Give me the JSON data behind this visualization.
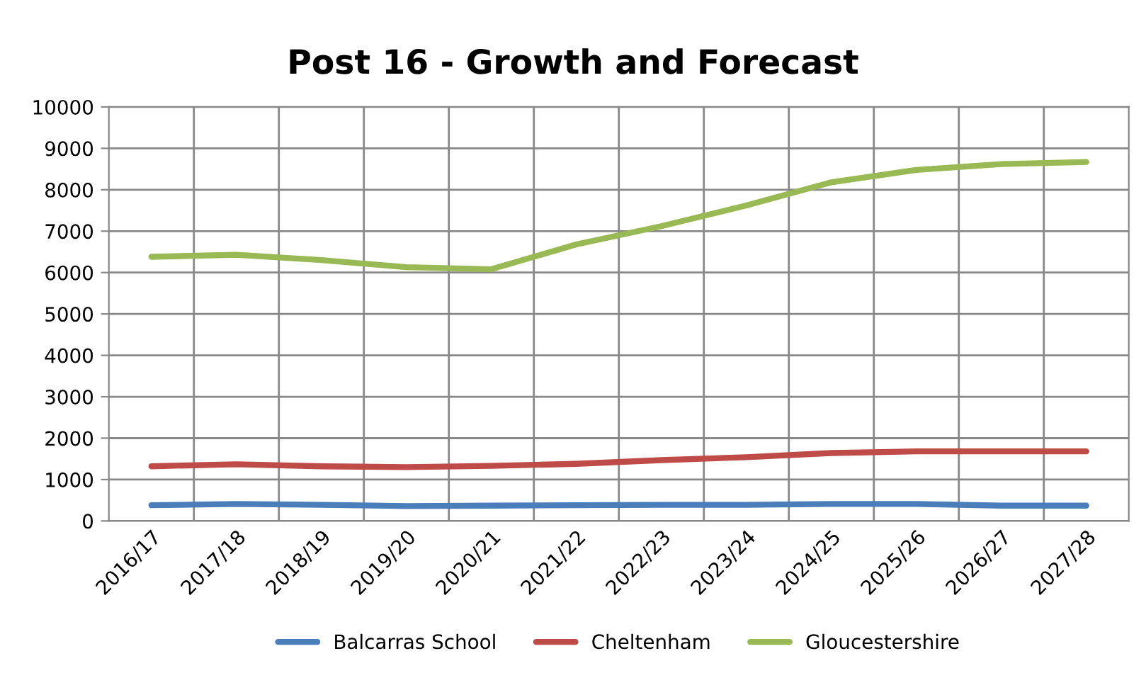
{
  "chart_data": {
    "type": "line",
    "title": "Post 16 - Growth and Forecast",
    "categories": [
      "2016/17",
      "2017/18",
      "2018/19",
      "2019/20",
      "2020/21",
      "2021/22",
      "2022/23",
      "2023/24",
      "2024/25",
      "2025/26",
      "2026/27",
      "2027/28"
    ],
    "series": [
      {
        "name": "Balcarras School",
        "color": "#4a7ebb",
        "values": [
          380,
          410,
          390,
          360,
          370,
          380,
          390,
          390,
          410,
          410,
          370,
          370
        ]
      },
      {
        "name": "Cheltenham",
        "color": "#be4b48",
        "values": [
          1320,
          1370,
          1320,
          1300,
          1330,
          1380,
          1470,
          1540,
          1640,
          1680,
          1680,
          1680
        ]
      },
      {
        "name": "Gloucestershire",
        "color": "#98b954",
        "values": [
          6380,
          6430,
          6300,
          6130,
          6080,
          6680,
          7120,
          7620,
          8180,
          8480,
          8620,
          8670
        ]
      }
    ],
    "ylim": [
      0,
      10000
    ],
    "yticks": [
      0,
      1000,
      2000,
      3000,
      4000,
      5000,
      6000,
      7000,
      8000,
      9000,
      10000
    ],
    "grid": true,
    "legend": "bottom",
    "marker": "none",
    "line_style": "solid"
  }
}
